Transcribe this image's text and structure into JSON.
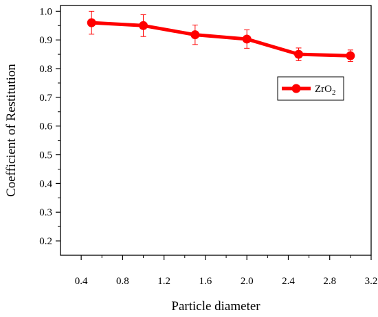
{
  "chart_data": {
    "type": "line",
    "xlabel": "Particle diameter",
    "ylabel": "Coefficient of Restitution",
    "xlim": [
      0.2,
      3.2
    ],
    "ylim": [
      0.15,
      1.02
    ],
    "x_ticks": [
      0.4,
      0.8,
      1.2,
      1.6,
      2.0,
      2.4,
      2.8,
      3.2
    ],
    "x_tick_labels": [
      "0.4",
      "0.8",
      "1.2",
      "1.6",
      "2.0",
      "2.4",
      "2.8",
      "3.2"
    ],
    "y_ticks": [
      0.2,
      0.3,
      0.4,
      0.5,
      0.6,
      0.7,
      0.8,
      0.9,
      1.0
    ],
    "y_tick_labels": [
      "0.2",
      "0.3",
      "0.4",
      "0.5",
      "0.6",
      "0.7",
      "0.8",
      "0.9",
      "1.0"
    ],
    "grid": false,
    "legend_position": "top-right",
    "series": [
      {
        "name": "ZrO2",
        "legend_base": "ZrO",
        "legend_sub": "2",
        "color": "#ff0000",
        "x": [
          0.5,
          1.0,
          1.5,
          2.0,
          2.5,
          3.0
        ],
        "y": [
          0.96,
          0.95,
          0.918,
          0.903,
          0.85,
          0.845
        ],
        "error": [
          0.04,
          0.038,
          0.034,
          0.032,
          0.022,
          0.02
        ]
      }
    ]
  }
}
